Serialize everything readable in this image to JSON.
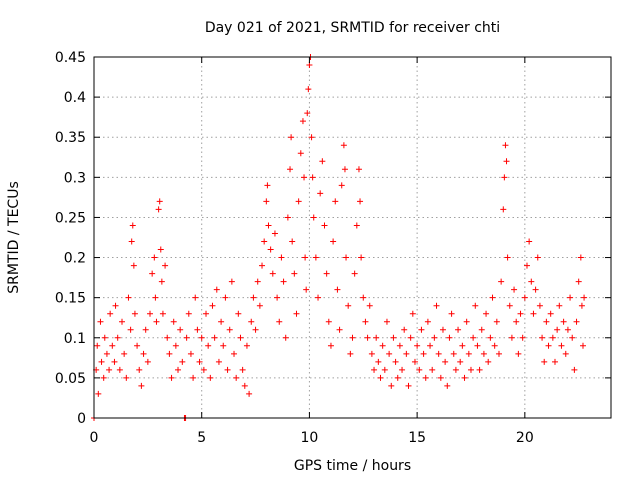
{
  "chart_data": {
    "type": "scatter",
    "title": "Day 021 of 2021, SRMTID for receiver chti",
    "xlabel": "GPS time / hours",
    "ylabel": "SRMTID / TECUs",
    "xlim": [
      0,
      24
    ],
    "ylim": [
      0,
      0.45
    ],
    "xticks": [
      0,
      5,
      10,
      15,
      20
    ],
    "xtick_labels": [
      "0",
      "5",
      "10",
      "15",
      "20"
    ],
    "yticks": [
      0,
      0.05,
      0.1,
      0.15,
      0.2,
      0.25,
      0.3,
      0.35,
      0.4,
      0.45
    ],
    "ytick_labels": [
      "0",
      "0.05",
      "0.1",
      "0.15",
      "0.2",
      "0.25",
      "0.3",
      "0.35",
      "0.4",
      "0.45"
    ],
    "grid": true,
    "marker": "+",
    "marker_color": "#ff0000",
    "series": [
      {
        "points": [
          [
            0.0,
            0.0
          ],
          [
            0.1,
            0.06
          ],
          [
            0.15,
            0.09
          ],
          [
            0.2,
            0.03
          ],
          [
            0.3,
            0.12
          ],
          [
            0.35,
            0.07
          ],
          [
            0.45,
            0.05
          ],
          [
            0.5,
            0.1
          ],
          [
            0.6,
            0.08
          ],
          [
            0.7,
            0.06
          ],
          [
            0.75,
            0.13
          ],
          [
            0.85,
            0.09
          ],
          [
            0.95,
            0.07
          ],
          [
            1.0,
            0.14
          ],
          [
            1.1,
            0.1
          ],
          [
            1.2,
            0.06
          ],
          [
            1.3,
            0.12
          ],
          [
            1.4,
            0.08
          ],
          [
            1.5,
            0.05
          ],
          [
            1.6,
            0.15
          ],
          [
            1.7,
            0.11
          ],
          [
            1.75,
            0.22
          ],
          [
            1.8,
            0.24
          ],
          [
            1.85,
            0.19
          ],
          [
            1.9,
            0.13
          ],
          [
            2.0,
            0.09
          ],
          [
            2.1,
            0.06
          ],
          [
            2.2,
            0.04
          ],
          [
            2.3,
            0.08
          ],
          [
            2.4,
            0.11
          ],
          [
            2.5,
            0.07
          ],
          [
            2.6,
            0.13
          ],
          [
            2.7,
            0.18
          ],
          [
            2.8,
            0.2
          ],
          [
            2.85,
            0.15
          ],
          [
            2.9,
            0.12
          ],
          [
            3.0,
            0.26
          ],
          [
            3.05,
            0.27
          ],
          [
            3.1,
            0.21
          ],
          [
            3.15,
            0.17
          ],
          [
            3.2,
            0.13
          ],
          [
            3.3,
            0.19
          ],
          [
            3.4,
            0.1
          ],
          [
            3.5,
            0.08
          ],
          [
            3.6,
            0.05
          ],
          [
            3.7,
            0.12
          ],
          [
            3.8,
            0.09
          ],
          [
            3.9,
            0.06
          ],
          [
            4.0,
            0.11
          ],
          [
            4.1,
            0.07
          ],
          [
            4.2,
            0.0
          ],
          [
            4.25,
            0.0
          ],
          [
            4.3,
            0.1
          ],
          [
            4.4,
            0.13
          ],
          [
            4.5,
            0.08
          ],
          [
            4.6,
            0.05
          ],
          [
            4.7,
            0.15
          ],
          [
            4.8,
            0.11
          ],
          [
            4.9,
            0.07
          ],
          [
            5.0,
            0.1
          ],
          [
            5.1,
            0.06
          ],
          [
            5.2,
            0.13
          ],
          [
            5.3,
            0.09
          ],
          [
            5.4,
            0.05
          ],
          [
            5.5,
            0.14
          ],
          [
            5.6,
            0.1
          ],
          [
            5.7,
            0.16
          ],
          [
            5.8,
            0.07
          ],
          [
            5.9,
            0.12
          ],
          [
            6.0,
            0.09
          ],
          [
            6.1,
            0.15
          ],
          [
            6.2,
            0.06
          ],
          [
            6.3,
            0.11
          ],
          [
            6.4,
            0.17
          ],
          [
            6.5,
            0.08
          ],
          [
            6.6,
            0.05
          ],
          [
            6.7,
            0.13
          ],
          [
            6.8,
            0.1
          ],
          [
            6.9,
            0.06
          ],
          [
            7.0,
            0.04
          ],
          [
            7.1,
            0.09
          ],
          [
            7.2,
            0.03
          ],
          [
            7.3,
            0.12
          ],
          [
            7.4,
            0.15
          ],
          [
            7.5,
            0.11
          ],
          [
            7.6,
            0.17
          ],
          [
            7.7,
            0.14
          ],
          [
            7.8,
            0.19
          ],
          [
            7.9,
            0.22
          ],
          [
            8.0,
            0.27
          ],
          [
            8.05,
            0.29
          ],
          [
            8.1,
            0.24
          ],
          [
            8.2,
            0.21
          ],
          [
            8.3,
            0.18
          ],
          [
            8.4,
            0.23
          ],
          [
            8.5,
            0.15
          ],
          [
            8.6,
            0.12
          ],
          [
            8.7,
            0.2
          ],
          [
            8.8,
            0.17
          ],
          [
            8.9,
            0.1
          ],
          [
            9.0,
            0.25
          ],
          [
            9.1,
            0.31
          ],
          [
            9.15,
            0.35
          ],
          [
            9.2,
            0.22
          ],
          [
            9.3,
            0.18
          ],
          [
            9.4,
            0.13
          ],
          [
            9.5,
            0.27
          ],
          [
            9.6,
            0.33
          ],
          [
            9.7,
            0.37
          ],
          [
            9.75,
            0.3
          ],
          [
            9.8,
            0.2
          ],
          [
            9.85,
            0.16
          ],
          [
            9.9,
            0.38
          ],
          [
            9.95,
            0.41
          ],
          [
            10.0,
            0.44
          ],
          [
            10.05,
            0.45
          ],
          [
            10.1,
            0.35
          ],
          [
            10.15,
            0.3
          ],
          [
            10.2,
            0.25
          ],
          [
            10.3,
            0.2
          ],
          [
            10.4,
            0.15
          ],
          [
            10.5,
            0.28
          ],
          [
            10.6,
            0.32
          ],
          [
            10.7,
            0.24
          ],
          [
            10.8,
            0.18
          ],
          [
            10.9,
            0.12
          ],
          [
            11.0,
            0.09
          ],
          [
            11.1,
            0.22
          ],
          [
            11.2,
            0.27
          ],
          [
            11.3,
            0.16
          ],
          [
            11.4,
            0.11
          ],
          [
            11.5,
            0.29
          ],
          [
            11.6,
            0.34
          ],
          [
            11.65,
            0.31
          ],
          [
            11.7,
            0.2
          ],
          [
            11.8,
            0.14
          ],
          [
            11.9,
            0.08
          ],
          [
            12.0,
            0.1
          ],
          [
            12.1,
            0.18
          ],
          [
            12.2,
            0.24
          ],
          [
            12.3,
            0.31
          ],
          [
            12.35,
            0.27
          ],
          [
            12.4,
            0.2
          ],
          [
            12.5,
            0.15
          ],
          [
            12.6,
            0.12
          ],
          [
            12.7,
            0.1
          ],
          [
            12.8,
            0.14
          ],
          [
            12.9,
            0.08
          ],
          [
            13.0,
            0.06
          ],
          [
            13.1,
            0.1
          ],
          [
            13.2,
            0.07
          ],
          [
            13.3,
            0.05
          ],
          [
            13.4,
            0.09
          ],
          [
            13.5,
            0.06
          ],
          [
            13.6,
            0.12
          ],
          [
            13.7,
            0.08
          ],
          [
            13.8,
            0.04
          ],
          [
            13.9,
            0.1
          ],
          [
            14.0,
            0.07
          ],
          [
            14.1,
            0.05
          ],
          [
            14.2,
            0.09
          ],
          [
            14.3,
            0.06
          ],
          [
            14.4,
            0.11
          ],
          [
            14.5,
            0.08
          ],
          [
            14.6,
            0.04
          ],
          [
            14.7,
            0.1
          ],
          [
            14.8,
            0.13
          ],
          [
            14.9,
            0.07
          ],
          [
            15.0,
            0.09
          ],
          [
            15.1,
            0.06
          ],
          [
            15.2,
            0.11
          ],
          [
            15.3,
            0.08
          ],
          [
            15.4,
            0.05
          ],
          [
            15.5,
            0.12
          ],
          [
            15.6,
            0.09
          ],
          [
            15.7,
            0.06
          ],
          [
            15.8,
            0.1
          ],
          [
            15.9,
            0.14
          ],
          [
            16.0,
            0.08
          ],
          [
            16.1,
            0.05
          ],
          [
            16.2,
            0.11
          ],
          [
            16.3,
            0.07
          ],
          [
            16.4,
            0.04
          ],
          [
            16.5,
            0.1
          ],
          [
            16.6,
            0.13
          ],
          [
            16.7,
            0.08
          ],
          [
            16.8,
            0.06
          ],
          [
            16.9,
            0.11
          ],
          [
            17.0,
            0.07
          ],
          [
            17.1,
            0.09
          ],
          [
            17.2,
            0.05
          ],
          [
            17.3,
            0.12
          ],
          [
            17.4,
            0.08
          ],
          [
            17.5,
            0.06
          ],
          [
            17.6,
            0.1
          ],
          [
            17.7,
            0.14
          ],
          [
            17.8,
            0.09
          ],
          [
            17.9,
            0.06
          ],
          [
            18.0,
            0.11
          ],
          [
            18.1,
            0.08
          ],
          [
            18.2,
            0.13
          ],
          [
            18.3,
            0.07
          ],
          [
            18.4,
            0.1
          ],
          [
            18.5,
            0.15
          ],
          [
            18.6,
            0.09
          ],
          [
            18.7,
            0.12
          ],
          [
            18.8,
            0.08
          ],
          [
            18.9,
            0.17
          ],
          [
            19.0,
            0.26
          ],
          [
            19.05,
            0.3
          ],
          [
            19.1,
            0.34
          ],
          [
            19.15,
            0.32
          ],
          [
            19.2,
            0.2
          ],
          [
            19.3,
            0.14
          ],
          [
            19.4,
            0.1
          ],
          [
            19.5,
            0.16
          ],
          [
            19.6,
            0.12
          ],
          [
            19.7,
            0.08
          ],
          [
            19.8,
            0.13
          ],
          [
            19.9,
            0.1
          ],
          [
            20.0,
            0.15
          ],
          [
            20.1,
            0.19
          ],
          [
            20.2,
            0.22
          ],
          [
            20.3,
            0.17
          ],
          [
            20.4,
            0.13
          ],
          [
            20.5,
            0.16
          ],
          [
            20.6,
            0.2
          ],
          [
            20.7,
            0.14
          ],
          [
            20.8,
            0.1
          ],
          [
            20.9,
            0.07
          ],
          [
            21.0,
            0.12
          ],
          [
            21.1,
            0.09
          ],
          [
            21.2,
            0.13
          ],
          [
            21.3,
            0.1
          ],
          [
            21.4,
            0.07
          ],
          [
            21.5,
            0.11
          ],
          [
            21.6,
            0.14
          ],
          [
            21.7,
            0.09
          ],
          [
            21.8,
            0.12
          ],
          [
            21.9,
            0.08
          ],
          [
            22.0,
            0.11
          ],
          [
            22.1,
            0.15
          ],
          [
            22.2,
            0.1
          ],
          [
            22.3,
            0.06
          ],
          [
            22.4,
            0.12
          ],
          [
            22.5,
            0.17
          ],
          [
            22.6,
            0.2
          ],
          [
            22.65,
            0.14
          ],
          [
            22.7,
            0.09
          ],
          [
            22.75,
            0.15
          ]
        ]
      }
    ]
  }
}
